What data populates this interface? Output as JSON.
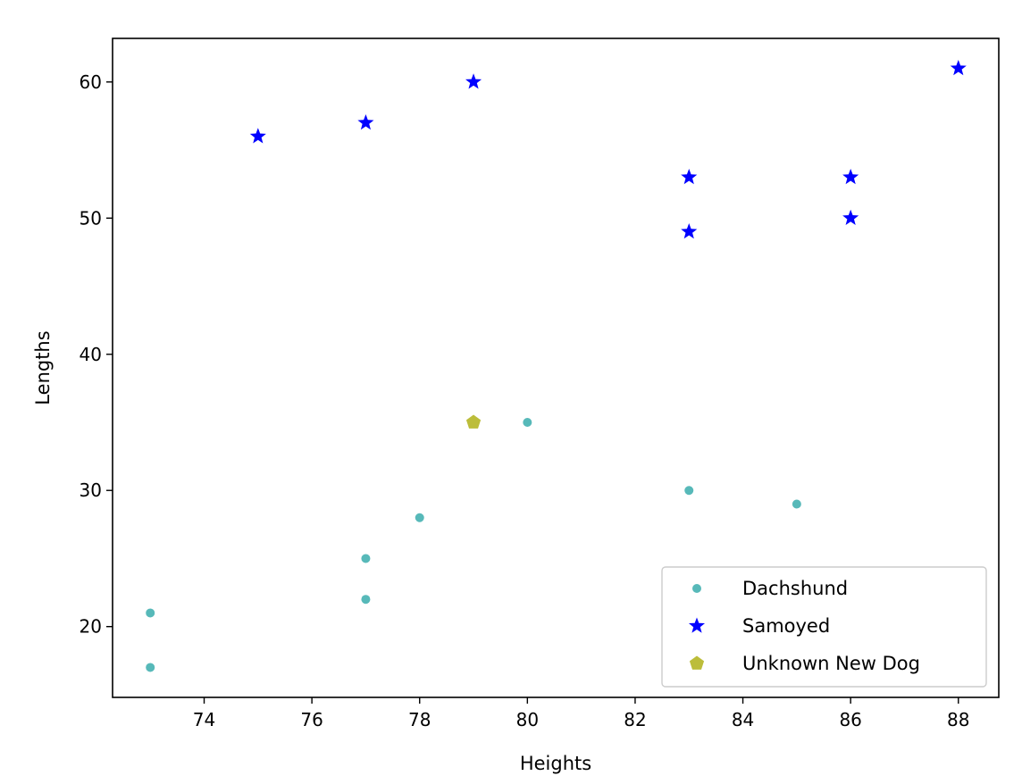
{
  "chart_data": {
    "type": "scatter",
    "title": "",
    "xlabel": "Heights",
    "ylabel": "Lengths",
    "xlim": [
      72.3,
      88.75
    ],
    "ylim": [
      14.8,
      63.2
    ],
    "xticks": [
      74,
      76,
      78,
      80,
      82,
      84,
      86,
      88
    ],
    "yticks": [
      20,
      30,
      40,
      50,
      60
    ],
    "grid": false,
    "legend_position": "lower-right",
    "series": [
      {
        "name": "Dachshund",
        "marker": "circle",
        "color": "#57b9b9",
        "points": [
          [
            73,
            21
          ],
          [
            73,
            17
          ],
          [
            77,
            25
          ],
          [
            77,
            22
          ],
          [
            78,
            28
          ],
          [
            80,
            35
          ],
          [
            83,
            30
          ],
          [
            85,
            29
          ]
        ]
      },
      {
        "name": "Samoyed",
        "marker": "star",
        "color": "#0000ff",
        "points": [
          [
            75,
            56
          ],
          [
            77,
            57
          ],
          [
            79,
            60
          ],
          [
            83,
            53
          ],
          [
            83,
            49
          ],
          [
            86,
            53
          ],
          [
            86,
            50
          ],
          [
            88,
            61
          ]
        ]
      },
      {
        "name": "Unknown New Dog",
        "marker": "pentagon",
        "color": "#bcbd3a",
        "points": [
          [
            79,
            35
          ]
        ]
      }
    ]
  }
}
